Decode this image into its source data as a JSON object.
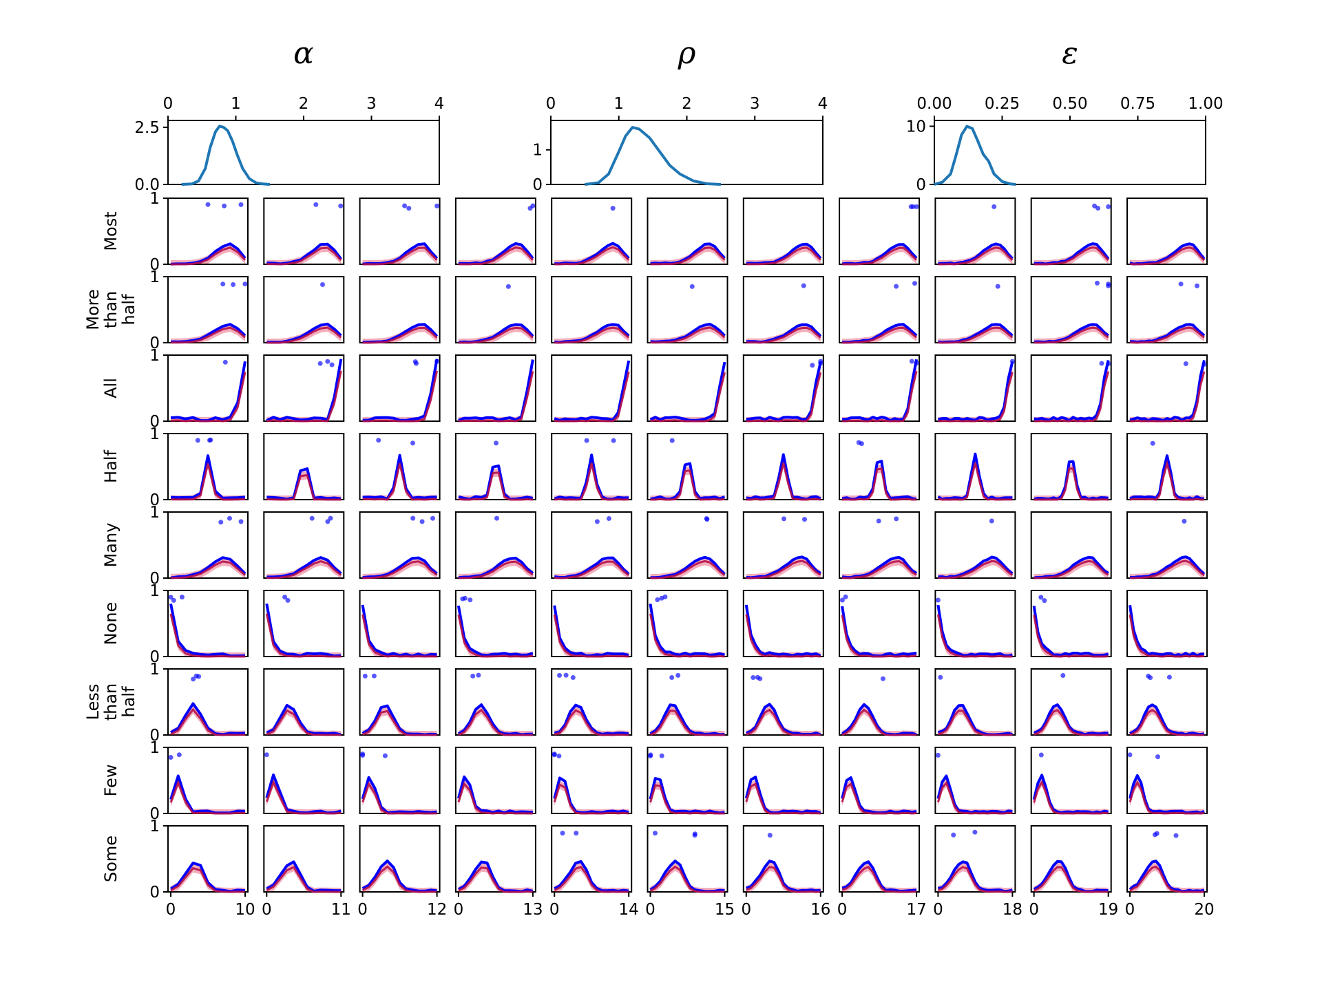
{
  "chart_data": {
    "type": "line",
    "description": "Grid of density plots: top row shows posterior densities of three parameters; lower rows show predicted response distributions per quantifier for n = 10..20",
    "top_panels": [
      {
        "param": "α",
        "xlim": [
          0,
          4
        ],
        "xticks": [
          "0",
          "1",
          "2",
          "3",
          "4"
        ],
        "ylim": [
          0,
          2.8
        ],
        "yticks": [
          "0.0",
          "2.5"
        ],
        "x": [
          0.2,
          0.35,
          0.45,
          0.55,
          0.62,
          0.7,
          0.76,
          0.82,
          0.88,
          0.95,
          1.02,
          1.1,
          1.2,
          1.3,
          1.4,
          1.5
        ],
        "y": [
          0.0,
          0.02,
          0.15,
          0.7,
          1.6,
          2.3,
          2.55,
          2.5,
          2.35,
          1.9,
          1.3,
          0.7,
          0.25,
          0.07,
          0.02,
          0.0
        ],
        "color": "#1f77b4"
      },
      {
        "param": "ρ",
        "xlim": [
          0,
          4
        ],
        "xticks": [
          "0",
          "1",
          "2",
          "3",
          "4"
        ],
        "ylim": [
          0,
          1.85
        ],
        "yticks": [
          "0",
          "1"
        ],
        "x": [
          0.5,
          0.7,
          0.85,
          1.0,
          1.1,
          1.2,
          1.3,
          1.45,
          1.6,
          1.75,
          1.9,
          2.1,
          2.3,
          2.5
        ],
        "y": [
          0.0,
          0.05,
          0.3,
          0.95,
          1.4,
          1.65,
          1.6,
          1.35,
          0.95,
          0.55,
          0.3,
          0.1,
          0.02,
          0.0
        ],
        "color": "#1f77b4"
      },
      {
        "param": "ε",
        "xlim": [
          0.0,
          1.0
        ],
        "xticks": [
          "0.00",
          "0.25",
          "0.50",
          "0.75",
          "1.00"
        ],
        "ylim": [
          0,
          11
        ],
        "yticks": [
          "0",
          "10"
        ],
        "x": [
          0.0,
          0.03,
          0.06,
          0.08,
          0.1,
          0.12,
          0.14,
          0.16,
          0.18,
          0.2,
          0.22,
          0.25,
          0.28,
          0.3
        ],
        "y": [
          0.0,
          0.4,
          1.8,
          5.0,
          8.5,
          10.0,
          9.6,
          7.5,
          5.2,
          4.0,
          1.8,
          0.5,
          0.1,
          0.0
        ],
        "color": "#1f77b4"
      }
    ],
    "small_multiples": {
      "row_labels": [
        "Most",
        "More than half",
        "All",
        "Half",
        "Many",
        "None",
        "Less than half",
        "Few",
        "Some"
      ],
      "column_n": [
        10,
        11,
        12,
        13,
        14,
        15,
        16,
        17,
        18,
        19,
        20
      ],
      "x_tick_labels": [
        "0",
        "10",
        "0",
        "11",
        "0",
        "12",
        "0",
        "13",
        "0",
        "14",
        "0",
        "15",
        "0",
        "16",
        "0",
        "17",
        "0",
        "18",
        "0",
        "19",
        "0",
        "20"
      ],
      "y_tick_labels": [
        "0",
        "1"
      ],
      "ylim": [
        0,
        1
      ],
      "x_axis": "count k from 0 to n",
      "series_colors": {
        "observed": "#0000ff",
        "predicted_band": "#dc143c"
      },
      "shapes": [
        {
          "quantifier": "Most",
          "center": 0.8,
          "width": 0.17,
          "peak": 0.3,
          "skew": 1
        },
        {
          "quantifier": "More than half",
          "center": 0.8,
          "width": 0.19,
          "peak": 0.27,
          "skew": 1
        },
        {
          "quantifier": "All",
          "center": 1.0,
          "width": 0.1,
          "peak": 0.88,
          "skew": 0
        },
        {
          "quantifier": "Half",
          "center": 0.5,
          "width": 0.07,
          "peak": 0.65,
          "skew": 0
        },
        {
          "quantifier": "Many",
          "center": 0.75,
          "width": 0.19,
          "peak": 0.3,
          "skew": 1
        },
        {
          "quantifier": "None",
          "center": 0.0,
          "width": 0.08,
          "peak": 0.75,
          "skew": 0
        },
        {
          "quantifier": "Less than half",
          "center": 0.3,
          "width": 0.15,
          "peak": 0.45,
          "skew": 0
        },
        {
          "quantifier": "Few",
          "center": 0.1,
          "width": 0.1,
          "peak": 0.55,
          "skew": 0
        },
        {
          "quantifier": "Some",
          "center": 0.35,
          "width": 0.13,
          "peak": 0.45,
          "skew": 1
        }
      ]
    }
  }
}
